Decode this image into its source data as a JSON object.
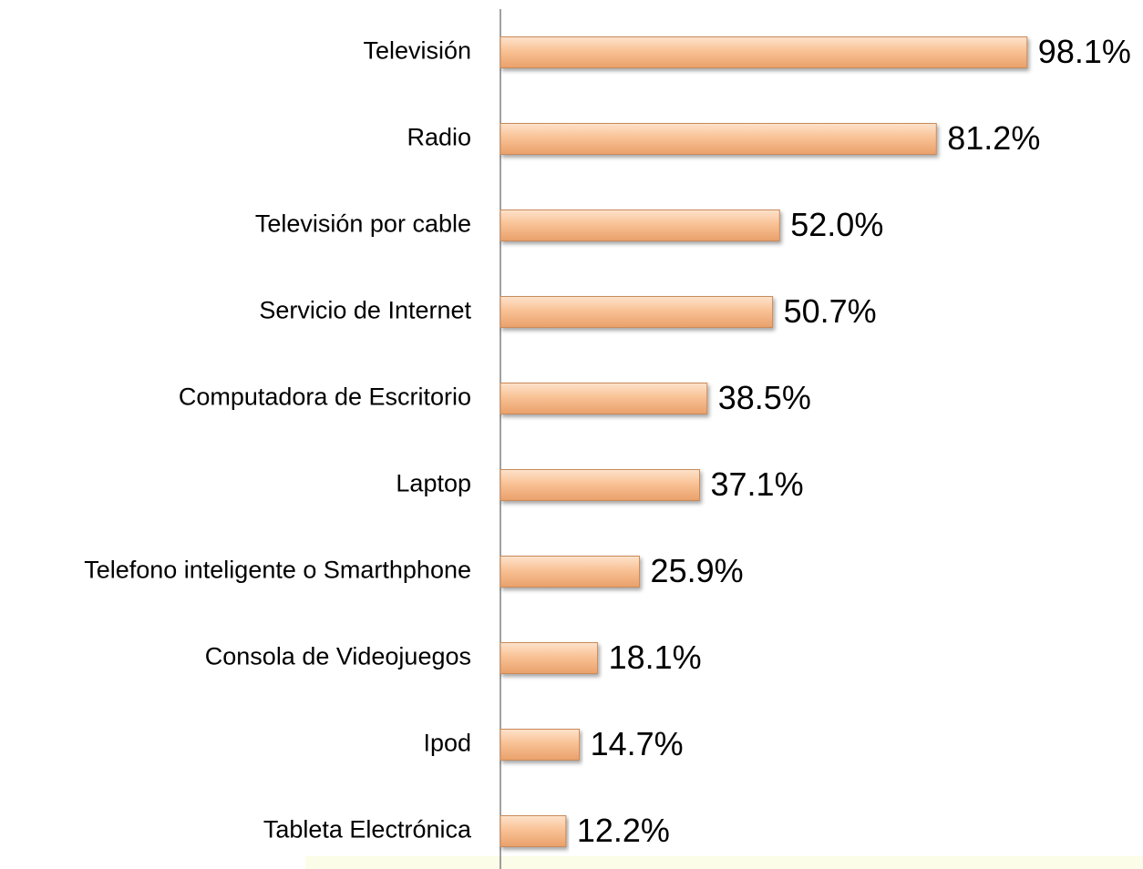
{
  "chart_data": {
    "type": "bar",
    "orientation": "horizontal",
    "categories": [
      "Televisión",
      "Radio",
      "Televisión por cable",
      "Servicio de Internet",
      "Computadora de Escritorio",
      "Laptop",
      "Telefono inteligente o Smarthphone",
      "Consola de Videojuegos",
      "Ipod",
      "Tableta Electrónica"
    ],
    "values": [
      98.1,
      81.2,
      52.0,
      50.7,
      38.5,
      37.1,
      25.9,
      18.1,
      14.7,
      12.2
    ],
    "value_labels": [
      "98.1%",
      "81.2%",
      "52.0%",
      "50.7%",
      "38.5%",
      "37.1%",
      "25.9%",
      "18.1%",
      "14.7%",
      "12.2%"
    ],
    "color": "#f9c296",
    "xlim": [
      0,
      100
    ]
  }
}
